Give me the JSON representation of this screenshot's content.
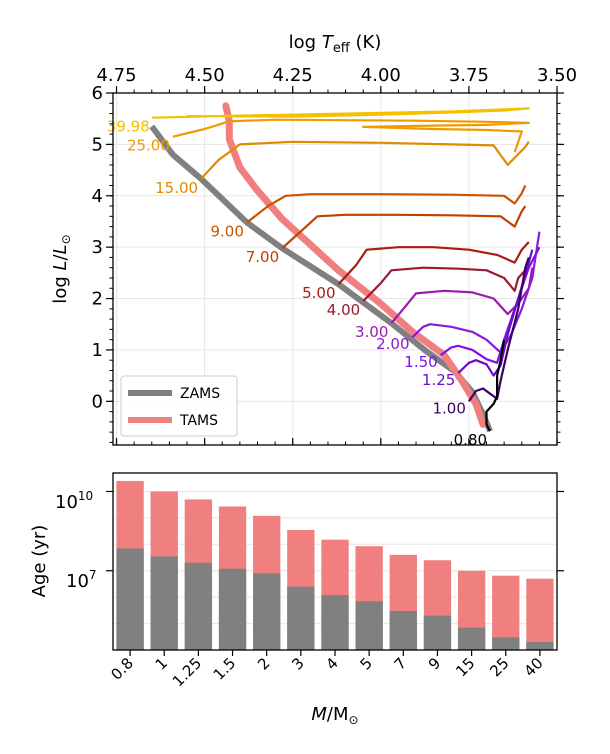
{
  "chart_data": [
    {
      "type": "line",
      "panel": "hr_diagram",
      "xlabel_top": "log T_eff (K)",
      "ylabel": "log L/L_sun",
      "xlim": [
        4.76,
        3.5
      ],
      "ylim": [
        -0.85,
        6.0
      ],
      "x_axis_inverted": true,
      "x_ticks": [
        "4.75",
        "4.50",
        "4.25",
        "4.00",
        "3.75",
        "3.50"
      ],
      "y_ticks": [
        "0",
        "1",
        "2",
        "3",
        "4",
        "5",
        "6"
      ],
      "grid": true,
      "legend_placement": "lower-left",
      "legend": [
        {
          "label": "ZAMS",
          "color": "#808080"
        },
        {
          "label": "TAMS",
          "color": "#f08080"
        }
      ],
      "zams": [
        [
          4.65,
          5.35
        ],
        [
          4.59,
          4.8
        ],
        [
          4.51,
          4.33
        ],
        [
          4.38,
          3.48
        ],
        [
          4.28,
          2.98
        ],
        [
          4.12,
          2.28
        ],
        [
          3.97,
          1.52
        ],
        [
          3.87,
          0.97
        ],
        [
          3.79,
          0.58
        ],
        [
          3.74,
          0.18
        ],
        [
          3.71,
          -0.25
        ],
        [
          3.69,
          -0.58
        ]
      ],
      "tams": [
        [
          4.44,
          5.75
        ],
        [
          4.43,
          5.45
        ],
        [
          4.43,
          5.1
        ],
        [
          4.4,
          4.55
        ],
        [
          4.35,
          4.1
        ],
        [
          4.28,
          3.55
        ],
        [
          4.2,
          3.05
        ],
        [
          4.12,
          2.55
        ],
        [
          4.0,
          1.9
        ],
        [
          3.91,
          1.35
        ],
        [
          3.82,
          0.9
        ],
        [
          3.77,
          0.4
        ],
        [
          3.73,
          -0.05
        ],
        [
          3.71,
          -0.45
        ]
      ],
      "tracks": [
        {
          "label": "39.98",
          "color": "#f5c000",
          "points": [
            [
              4.65,
              5.52
            ],
            [
              4.4,
              5.56
            ],
            [
              4.1,
              5.6
            ],
            [
              3.95,
              5.62
            ],
            [
              3.8,
              5.64
            ],
            [
              3.65,
              5.68
            ],
            [
              3.58,
              5.7
            ],
            [
              3.65,
              5.66
            ],
            [
              3.8,
              5.62
            ],
            [
              4.0,
              5.58
            ],
            [
              4.25,
              5.54
            ],
            [
              4.55,
              5.55
            ]
          ]
        },
        {
          "label": "25.00",
          "color": "#f09a00",
          "points": [
            [
              4.59,
              5.15
            ],
            [
              4.5,
              5.3
            ],
            [
              4.43,
              5.45
            ],
            [
              4.3,
              5.48
            ],
            [
              4.1,
              5.47
            ],
            [
              3.9,
              5.46
            ],
            [
              3.7,
              5.44
            ],
            [
              3.58,
              5.42
            ],
            [
              3.7,
              5.38
            ],
            [
              3.9,
              5.36
            ],
            [
              4.05,
              5.34
            ],
            [
              3.85,
              5.3
            ],
            [
              3.7,
              5.28
            ],
            [
              3.6,
              5.25
            ],
            [
              3.62,
              4.85
            ]
          ]
        },
        {
          "label": "15.00",
          "color": "#e08a00",
          "points": [
            [
              4.51,
              4.33
            ],
            [
              4.46,
              4.7
            ],
            [
              4.4,
              5.0
            ],
            [
              4.25,
              5.05
            ],
            [
              4.0,
              5.03
            ],
            [
              3.8,
              5.0
            ],
            [
              3.68,
              4.98
            ],
            [
              3.64,
              4.6
            ],
            [
              3.59,
              4.95
            ],
            [
              3.58,
              5.05
            ]
          ]
        },
        {
          "label": "9.00",
          "color": "#cc5200",
          "points": [
            [
              4.38,
              3.48
            ],
            [
              4.32,
              3.8
            ],
            [
              4.27,
              4.0
            ],
            [
              4.2,
              4.03
            ],
            [
              4.0,
              4.03
            ],
            [
              3.8,
              4.02
            ],
            [
              3.65,
              4.0
            ],
            [
              3.62,
              3.85
            ],
            [
              3.6,
              4.05
            ],
            [
              3.59,
              4.2
            ]
          ]
        },
        {
          "label": "7.00",
          "color": "#c04000",
          "points": [
            [
              4.28,
              2.98
            ],
            [
              4.22,
              3.35
            ],
            [
              4.18,
              3.6
            ],
            [
              4.1,
              3.63
            ],
            [
              3.95,
              3.63
            ],
            [
              3.8,
              3.62
            ],
            [
              3.66,
              3.6
            ],
            [
              3.62,
              3.4
            ],
            [
              3.6,
              3.7
            ],
            [
              3.59,
              3.8
            ]
          ]
        },
        {
          "label": "5.00",
          "color": "#a81d10",
          "points": [
            [
              4.12,
              2.28
            ],
            [
              4.07,
              2.65
            ],
            [
              4.04,
              2.95
            ],
            [
              3.95,
              3.0
            ],
            [
              3.85,
              3.0
            ],
            [
              3.75,
              2.95
            ],
            [
              3.67,
              2.85
            ],
            [
              3.62,
              2.7
            ],
            [
              3.6,
              2.95
            ],
            [
              3.58,
              3.1
            ]
          ]
        },
        {
          "label": "4.00",
          "color": "#9b1a30",
          "points": [
            [
              4.05,
              1.95
            ],
            [
              4.0,
              2.3
            ],
            [
              3.97,
              2.55
            ],
            [
              3.88,
              2.6
            ],
            [
              3.78,
              2.58
            ],
            [
              3.7,
              2.55
            ],
            [
              3.65,
              2.4
            ],
            [
              3.62,
              2.15
            ],
            [
              3.61,
              2.4
            ],
            [
              3.59,
              2.55
            ]
          ]
        },
        {
          "label": "3.00",
          "color": "#9b1ab0",
          "points": [
            [
              3.97,
              1.52
            ],
            [
              3.93,
              1.85
            ],
            [
              3.9,
              2.1
            ],
            [
              3.82,
              2.15
            ],
            [
              3.74,
              2.12
            ],
            [
              3.68,
              2.0
            ],
            [
              3.64,
              1.7
            ],
            [
              3.61,
              1.9
            ],
            [
              3.58,
              2.2
            ],
            [
              3.57,
              2.6
            ]
          ]
        },
        {
          "label": "2.00",
          "color": "#8a1ad8",
          "points": [
            [
              3.91,
              1.25
            ],
            [
              3.88,
              1.45
            ],
            [
              3.86,
              1.5
            ],
            [
              3.8,
              1.45
            ],
            [
              3.74,
              1.35
            ],
            [
              3.7,
              1.2
            ],
            [
              3.66,
              0.95
            ],
            [
              3.63,
              1.3
            ],
            [
              3.6,
              1.8
            ],
            [
              3.57,
              2.4
            ],
            [
              3.55,
              3.3
            ]
          ]
        },
        {
          "label": "1.50",
          "color": "#8010e8",
          "points": [
            [
              3.83,
              0.9
            ],
            [
              3.8,
              1.05
            ],
            [
              3.78,
              1.08
            ],
            [
              3.74,
              1.0
            ],
            [
              3.7,
              0.82
            ],
            [
              3.67,
              0.75
            ],
            [
              3.65,
              1.2
            ],
            [
              3.62,
              1.8
            ],
            [
              3.58,
              2.6
            ],
            [
              3.55,
              3.0
            ]
          ]
        },
        {
          "label": "1.25",
          "color": "#6a0dcc",
          "points": [
            [
              3.78,
              0.55
            ],
            [
              3.75,
              0.75
            ],
            [
              3.73,
              0.8
            ],
            [
              3.7,
              0.72
            ],
            [
              3.68,
              0.5
            ],
            [
              3.66,
              0.7
            ],
            [
              3.64,
              1.3
            ],
            [
              3.61,
              2.0
            ],
            [
              3.58,
              2.7
            ],
            [
              3.57,
              2.95
            ]
          ]
        },
        {
          "label": "1.00",
          "color": "#3a0066",
          "points": [
            [
              3.75,
              0.0
            ],
            [
              3.73,
              0.2
            ],
            [
              3.71,
              0.25
            ],
            [
              3.69,
              0.15
            ],
            [
              3.67,
              0.05
            ],
            [
              3.66,
              0.4
            ],
            [
              3.64,
              1.0
            ],
            [
              3.61,
              1.8
            ],
            [
              3.59,
              2.6
            ],
            [
              3.58,
              2.8
            ]
          ]
        },
        {
          "label": "0.80",
          "color": "#000000",
          "points": [
            [
              3.69,
              -0.58
            ],
            [
              3.7,
              -0.45
            ],
            [
              3.7,
              -0.2
            ],
            [
              3.68,
              -0.05
            ],
            [
              3.67,
              0.1
            ],
            [
              3.67,
              0.5
            ],
            [
              3.66,
              0.8
            ],
            [
              3.65,
              1.2
            ]
          ]
        }
      ]
    },
    {
      "type": "bar",
      "panel": "ages",
      "xlabel": "M/M_sun",
      "ylabel": "Age (yr)",
      "y_scale": "log",
      "ylim": [
        10000,
        50000000000
      ],
      "y_ticks": [
        "10^10",
        "10^7"
      ],
      "grid": true,
      "categories": [
        "0.8",
        "1",
        "1.25",
        "1.5",
        "2",
        "3",
        "4",
        "5",
        "7",
        "9",
        "15",
        "25",
        "40"
      ],
      "series": [
        {
          "name": "TAMS",
          "color": "#f08080",
          "values": [
            25000000000,
            10000000000,
            5000000000,
            2700000000,
            1200000000,
            350000000,
            150000000,
            85000000,
            40000000,
            25000000,
            10000000,
            6500000,
            5000000
          ]
        },
        {
          "name": "ZAMS",
          "color": "#808080",
          "values": [
            70000000,
            35000000,
            20000000,
            12000000,
            8000000,
            2500000,
            1200000,
            700000,
            300000,
            200000,
            70000,
            30000,
            20000
          ]
        }
      ]
    }
  ],
  "labels": {
    "top_axis_pre": "log",
    "top_axis_var": "T",
    "top_axis_sub": "eff",
    "top_axis_unit": " (K)",
    "left_axis_pre": "log",
    "left_axis_var": "L",
    "left_axis_slash": "/",
    "left_axis_var2": "L",
    "left_axis_sun": "⊙",
    "bottom_ylabel": "Age (yr)",
    "bottom_tick_base": "10",
    "bottom_tick_exp_hi": "10",
    "bottom_tick_exp_lo": "7",
    "bottom_xlabel_var": "M",
    "bottom_xlabel_slash": "/M",
    "bottom_xlabel_sun": "⊙",
    "legend_zams": "ZAMS",
    "legend_tams": "TAMS"
  }
}
